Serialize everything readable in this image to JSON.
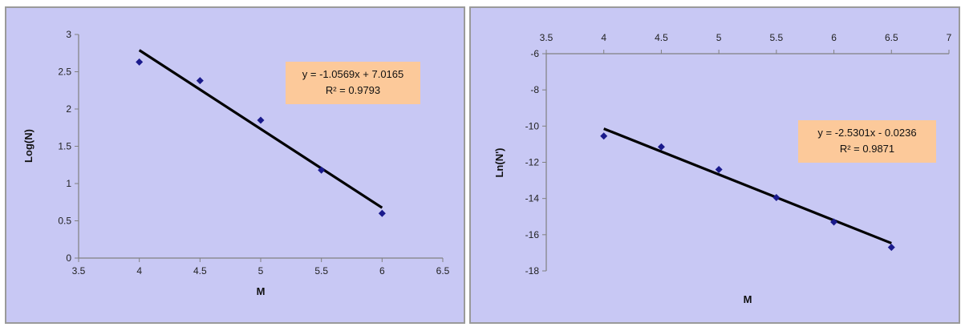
{
  "colors": {
    "background": "#c8c8f4",
    "axis": "#808080",
    "marker": "#1a1a8c",
    "trendline": "#000000",
    "equation_box": "#fcc99a"
  },
  "chart_data": [
    {
      "type": "scatter",
      "xlabel": "M",
      "ylabel": "Log(N)",
      "xlim": [
        3.5,
        6.5
      ],
      "ylim": [
        0,
        3
      ],
      "x_ticks": [
        "3.5",
        "4",
        "4.5",
        "5",
        "5.5",
        "6",
        "6.5"
      ],
      "y_ticks": [
        "0",
        "0.5",
        "1",
        "1.5",
        "2",
        "2.5",
        "3"
      ],
      "x_axis_position": "bottom",
      "grid": false,
      "marker": "diamond",
      "series": [
        {
          "x": [
            4,
            4.5,
            5,
            5.5,
            6
          ],
          "y": [
            2.63,
            2.38,
            1.85,
            1.18,
            0.6
          ]
        }
      ],
      "trendline": {
        "slope": -1.0569,
        "intercept": 7.0165,
        "x_range": [
          4,
          6
        ],
        "equation": "y = -1.0569x + 7.0165",
        "r2_label": "R² = 0.9793"
      }
    },
    {
      "type": "scatter",
      "xlabel": "M",
      "ylabel": "Ln(N')",
      "xlim": [
        3.5,
        7
      ],
      "ylim": [
        -18,
        -6
      ],
      "x_ticks": [
        "3.5",
        "4",
        "4.5",
        "5",
        "5.5",
        "6",
        "6.5",
        "7"
      ],
      "y_ticks": [
        "-18",
        "-16",
        "-14",
        "-12",
        "-10",
        "-8",
        "-6"
      ],
      "x_axis_position": "top",
      "grid": false,
      "marker": "diamond",
      "series": [
        {
          "x": [
            4,
            4.5,
            5,
            5.5,
            6,
            6.5
          ],
          "y": [
            -10.55,
            -11.15,
            -12.4,
            -13.95,
            -15.3,
            -16.7
          ]
        }
      ],
      "trendline": {
        "slope": -2.5301,
        "intercept": -0.0236,
        "x_range": [
          4,
          6.5
        ],
        "equation": "y = -2.5301x - 0.0236",
        "r2_label": "R² = 0.9871"
      }
    }
  ]
}
